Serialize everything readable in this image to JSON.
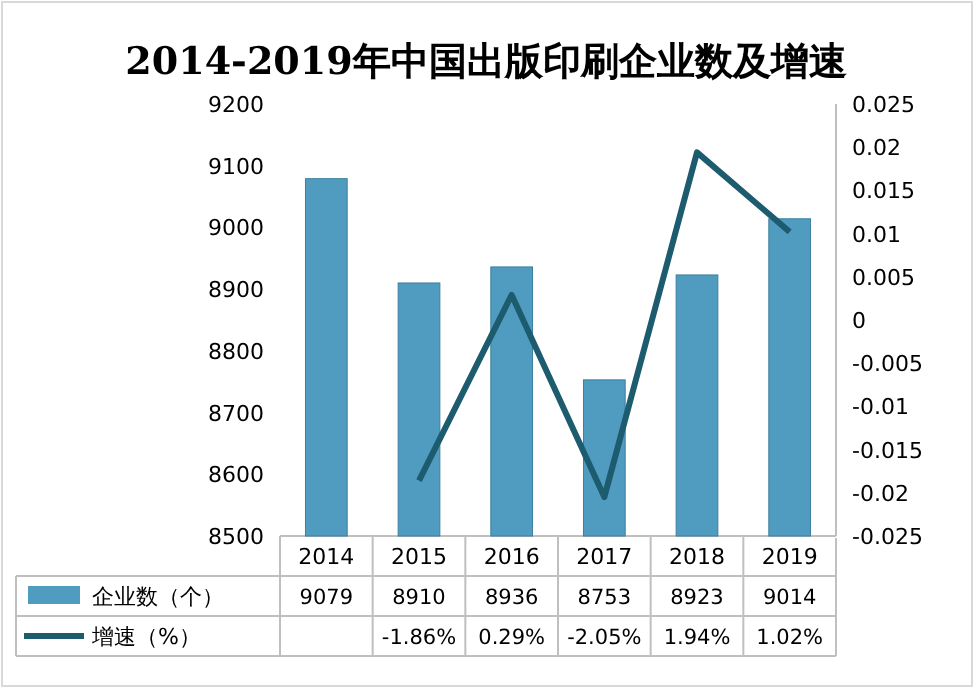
{
  "chart_data": {
    "type": "bar",
    "title": "2014-2019年中国出版印刷企业数及增速",
    "categories": [
      "2014",
      "2015",
      "2016",
      "2017",
      "2018",
      "2019"
    ],
    "series": [
      {
        "name": "企业数（个）",
        "color": "#4f9cc0",
        "values": [
          9079,
          8910,
          8936,
          8753,
          8923,
          9014
        ],
        "value_labels": [
          "9079",
          "8910",
          "8936",
          "8753",
          "8923",
          "9014"
        ]
      },
      {
        "name": "增速（%）",
        "type": "line",
        "axis": "y2",
        "color": "#1d5b6f",
        "values": [
          null,
          -0.0186,
          0.0029,
          -0.0205,
          0.0194,
          0.0102
        ],
        "value_labels": [
          null,
          "-1.86%",
          "0.29%",
          "-2.05%",
          "1.94%",
          "1.02%"
        ]
      }
    ],
    "ylim": [
      8500,
      9200
    ],
    "yticks": [
      8500,
      8600,
      8700,
      8800,
      8900,
      9000,
      9100,
      9200
    ],
    "y2lim": [
      -0.025,
      0.025
    ],
    "y2ticks": [
      -0.025,
      -0.02,
      -0.015,
      -0.01,
      -0.005,
      0,
      0.005,
      0.01,
      0.015,
      0.02,
      0.025
    ],
    "legend": "bottom",
    "marker": "none"
  }
}
